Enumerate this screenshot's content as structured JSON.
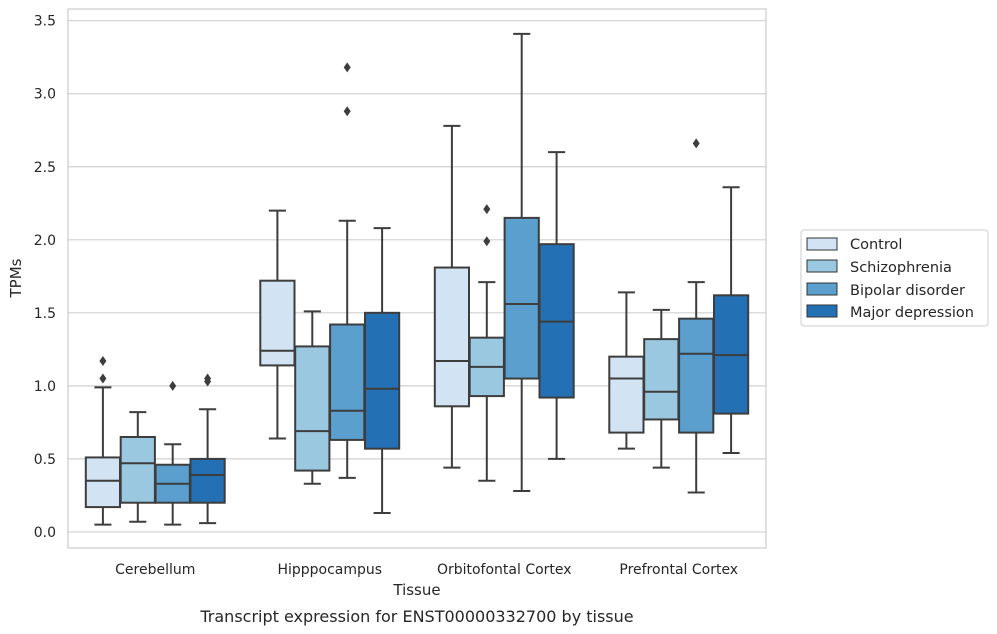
{
  "caption": "Transcript expression for ENST00000332700 by tissue",
  "chart_data": {
    "type": "box",
    "xlabel": "Tissue",
    "ylabel": "TPMs",
    "ylim": [
      -0.11,
      3.58
    ],
    "yticks": [
      0.0,
      0.5,
      1.0,
      1.5,
      2.0,
      2.5,
      3.0,
      3.5
    ],
    "ytick_labels": [
      "0.0",
      "0.5",
      "1.0",
      "1.5",
      "2.0",
      "2.5",
      "3.0",
      "3.5"
    ],
    "grid": "horizontal",
    "legend_placement": "right",
    "categories": [
      "Cerebellum",
      "Hipppocampus",
      "Orbitofontal Cortex",
      "Prefrontal Cortex"
    ],
    "series": [
      {
        "name": "Control",
        "color": "#d2e3f3",
        "boxes": [
          {
            "whislo": 0.05,
            "q1": 0.17,
            "med": 0.35,
            "q3": 0.51,
            "whishi": 0.99,
            "fliers": [
              1.05,
              1.17
            ]
          },
          {
            "whislo": 0.64,
            "q1": 1.14,
            "med": 1.24,
            "q3": 1.72,
            "whishi": 2.2,
            "fliers": []
          },
          {
            "whislo": 0.44,
            "q1": 0.86,
            "med": 1.17,
            "q3": 1.81,
            "whishi": 2.78,
            "fliers": []
          },
          {
            "whislo": 0.57,
            "q1": 0.68,
            "med": 1.05,
            "q3": 1.2,
            "whishi": 1.64,
            "fliers": []
          }
        ]
      },
      {
        "name": "Schizophrenia",
        "color": "#9ac8e0",
        "boxes": [
          {
            "whislo": 0.07,
            "q1": 0.2,
            "med": 0.47,
            "q3": 0.65,
            "whishi": 0.82,
            "fliers": []
          },
          {
            "whislo": 0.33,
            "q1": 0.42,
            "med": 0.69,
            "q3": 1.27,
            "whishi": 1.51,
            "fliers": []
          },
          {
            "whislo": 0.35,
            "q1": 0.93,
            "med": 1.13,
            "q3": 1.33,
            "whishi": 1.71,
            "fliers": [
              1.99,
              2.21
            ]
          },
          {
            "whislo": 0.44,
            "q1": 0.77,
            "med": 0.96,
            "q3": 1.32,
            "whishi": 1.52,
            "fliers": []
          }
        ]
      },
      {
        "name": "Bipolar disorder",
        "color": "#5a9fce",
        "boxes": [
          {
            "whislo": 0.05,
            "q1": 0.2,
            "med": 0.33,
            "q3": 0.46,
            "whishi": 0.6,
            "fliers": [
              1.0
            ]
          },
          {
            "whislo": 0.37,
            "q1": 0.63,
            "med": 0.83,
            "q3": 1.42,
            "whishi": 2.13,
            "fliers": [
              2.88,
              3.18
            ]
          },
          {
            "whislo": 0.28,
            "q1": 1.05,
            "med": 1.56,
            "q3": 2.15,
            "whishi": 3.41,
            "fliers": []
          },
          {
            "whislo": 0.27,
            "q1": 0.68,
            "med": 1.22,
            "q3": 1.46,
            "whishi": 1.71,
            "fliers": [
              2.66
            ]
          }
        ]
      },
      {
        "name": "Major depression",
        "color": "#2470b4",
        "boxes": [
          {
            "whislo": 0.06,
            "q1": 0.2,
            "med": 0.39,
            "q3": 0.5,
            "whishi": 0.84,
            "fliers": [
              1.03,
              1.05
            ]
          },
          {
            "whislo": 0.13,
            "q1": 0.57,
            "med": 0.98,
            "q3": 1.5,
            "whishi": 2.08,
            "fliers": []
          },
          {
            "whislo": 0.5,
            "q1": 0.92,
            "med": 1.44,
            "q3": 1.97,
            "whishi": 2.6,
            "fliers": []
          },
          {
            "whislo": 0.54,
            "q1": 0.81,
            "med": 1.21,
            "q3": 1.62,
            "whishi": 2.36,
            "fliers": []
          }
        ]
      }
    ]
  }
}
